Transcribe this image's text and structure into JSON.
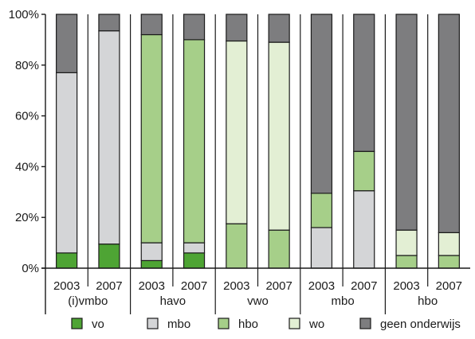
{
  "chart_data": {
    "type": "bar",
    "stacked": true,
    "normalized": true,
    "title": "",
    "xlabel": "",
    "ylabel": "",
    "ylim": [
      0,
      100
    ],
    "y_ticks": [
      "0%",
      "20%",
      "40%",
      "60%",
      "80%",
      "100%"
    ],
    "grid": "vertical separators between bar pairs",
    "legend_position": "bottom",
    "groups": [
      "(i)vmbo",
      "havo",
      "vwo",
      "mbo",
      "hbo"
    ],
    "years": [
      "2003",
      "2007"
    ],
    "categories": [
      "(i)vmbo 2003",
      "(i)vmbo 2007",
      "havo 2003",
      "havo 2007",
      "vwo 2003",
      "vwo 2007",
      "mbo 2003",
      "mbo 2007",
      "hbo 2003",
      "hbo 2007"
    ],
    "series": [
      {
        "name": "vo",
        "color": "#4ea434",
        "values": [
          6,
          9.5,
          3,
          6,
          0,
          0,
          0,
          0,
          0,
          0
        ]
      },
      {
        "name": "mbo",
        "color": "#d4d5d7",
        "values": [
          71,
          84,
          7,
          4,
          0,
          0,
          16,
          30.5,
          0,
          0
        ]
      },
      {
        "name": "hbo",
        "color": "#a6cf89",
        "values": [
          0,
          0,
          82,
          80,
          17.5,
          15,
          13.5,
          15.5,
          5,
          5
        ]
      },
      {
        "name": "wo",
        "color": "#e3efd4",
        "values": [
          0,
          0,
          0,
          0,
          72,
          74,
          0,
          0,
          10,
          9
        ]
      },
      {
        "name": "geen onderwijs",
        "color": "#7d7d7f",
        "values": [
          23,
          6.5,
          8,
          10,
          10.5,
          11,
          70.5,
          54,
          85,
          86
        ]
      }
    ]
  }
}
